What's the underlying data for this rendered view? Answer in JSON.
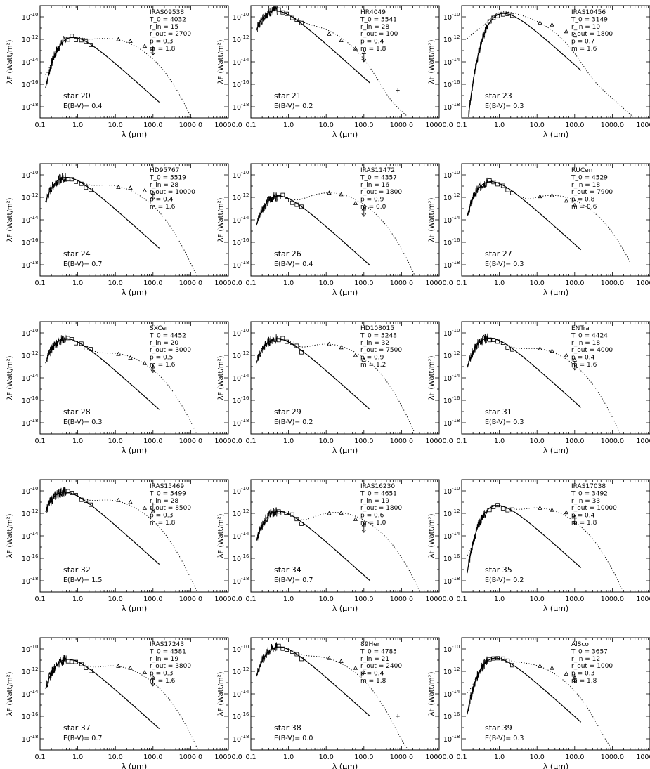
{
  "chart_data": [
    {
      "type": "line",
      "star_label": "star 20",
      "ebv_label": "E(B-V)= 0.4",
      "params": [
        "IRAS09538",
        "T_0 = 4032",
        "r_in = 15",
        "r_out = 2700",
        "p = 0.3",
        "m = 1.8"
      ],
      "peak": 1.5e-12,
      "peak_wl": 0.75,
      "dust_peak": 1.2e-12,
      "dust_wl": 6.0,
      "stop_wl": 3000,
      "irx": [
        12,
        25,
        60,
        100
      ],
      "irf": [
        1e-12,
        7e-13,
        2.5e-13,
        1.5e-13
      ],
      "upper_wl": 100,
      "upper_flux": 4e-14
    },
    {
      "type": "line",
      "star_label": "star 21",
      "ebv_label": "E(B-V)= 0.2",
      "params": [
        "HR4049",
        "T_0 = 5541",
        "r_in = 28",
        "r_out = 100",
        "p = 0.4",
        "m = 1.8"
      ],
      "peak": 3.5e-10,
      "peak_wl": 0.45,
      "dust_peak": 1.5e-11,
      "dust_wl": 3.0,
      "stop_wl": 3000,
      "irx": [
        12,
        25,
        60,
        100
      ],
      "irf": [
        3e-12,
        8e-13,
        1.5e-13,
        7e-14
      ],
      "upper_wl": 100,
      "upper_flux": 1e-14,
      "extra_wl": 800,
      "extra_flux": 3e-17
    },
    {
      "type": "line",
      "star_label": "star 23",
      "ebv_label": "E(B-V)= 0.3",
      "params": [
        "IRAS10456",
        "T_0 = 3149",
        "r_in = 10",
        "r_out = 1800",
        "p = 0.7",
        "m = 1.6"
      ],
      "peak": 2e-10,
      "peak_wl": 1.3,
      "dust_peak": 1e-10,
      "dust_wl": 2.5,
      "stop_wl": 5000,
      "irx": [
        12,
        25,
        60,
        100
      ],
      "irf": [
        3e-11,
        2e-11,
        5e-12,
        2.5e-12
      ]
    },
    {
      "type": "line",
      "star_label": "star 24",
      "ebv_label": "E(B-V)= 0.7",
      "params": [
        "HD95767",
        "T_0 = 5519",
        "r_in = 28",
        "r_out = 10000",
        "p = 0.4",
        "m = 1.6"
      ],
      "peak": 6e-11,
      "peak_wl": 0.5,
      "dust_peak": 1.2e-11,
      "dust_wl": 6.0,
      "stop_wl": 7000,
      "irx": [
        12,
        25,
        60,
        100
      ],
      "irf": [
        8e-12,
        7e-12,
        4e-12,
        2.5e-12
      ],
      "upper_wl": 100,
      "upper_flux": 6e-13
    },
    {
      "type": "line",
      "star_label": "star 26",
      "ebv_label": "E(B-V)= 0.4",
      "params": [
        "IRAS11472",
        "T_0 = 4357",
        "r_in = 16",
        "r_out = 1800",
        "p = 0.9",
        "m = 0.0"
      ],
      "peak": 1.3e-12,
      "peak_wl": 0.55,
      "dust_peak": 2.5e-12,
      "dust_wl": 12.0,
      "stop_wl": 2500,
      "irx": [
        12,
        25,
        60,
        100
      ],
      "irf": [
        2.5e-12,
        1.8e-12,
        3e-13,
        1e-13
      ],
      "upper_wl": 100,
      "upper_flux": 2e-14
    },
    {
      "type": "line",
      "star_label": "star 27",
      "ebv_label": "E(B-V)= 0.3",
      "params": [
        "RUCen",
        "T_0 = 4529",
        "r_in = 18",
        "r_out = 7900",
        "p = 0.8",
        "m = 0.6"
      ],
      "peak": 2.5e-11,
      "peak_wl": 0.6,
      "dust_peak": 1.5e-12,
      "dust_wl": 25.0,
      "stop_wl": 3000,
      "irx": [
        12,
        25,
        60,
        100
      ],
      "irf": [
        1.2e-12,
        1.5e-12,
        5e-13,
        2e-13
      ]
    },
    {
      "type": "line",
      "star_label": "star 28",
      "ebv_label": "E(B-V)= 0.3",
      "params": [
        "SXCen",
        "T_0 = 4452",
        "r_in = 20",
        "r_out = 3000",
        "p = 0.5",
        "m = 1.6"
      ],
      "peak": 3e-11,
      "peak_wl": 0.5,
      "dust_peak": 1.5e-12,
      "dust_wl": 8.0,
      "stop_wl": 3000,
      "irx": [
        12,
        25,
        60,
        100
      ],
      "irf": [
        1.3e-12,
        6e-13,
        2e-13,
        1e-13
      ],
      "upper_wl": 100,
      "upper_flux": 3e-14
    },
    {
      "type": "line",
      "star_label": "star 29",
      "ebv_label": "E(B-V)= 0.2",
      "params": [
        "HD108015",
        "T_0 = 5248",
        "r_in = 32",
        "r_out = 7500",
        "p = 0.9",
        "m = 1.2"
      ],
      "peak": 3e-11,
      "peak_wl": 0.5,
      "dust_peak": 1e-11,
      "dust_wl": 10.0,
      "stop_wl": 3000,
      "irx": [
        12,
        25,
        60,
        100
      ],
      "irf": [
        1e-11,
        5e-12,
        1e-12,
        4e-13
      ]
    },
    {
      "type": "line",
      "star_label": "star 31",
      "ebv_label": "E(B-V)= 0.3",
      "params": [
        "ENTra",
        "T_0 = 4424",
        "r_in = 18",
        "r_out = 4000",
        "p = 0.4",
        "m = 1.6"
      ],
      "peak": 3.5e-11,
      "peak_wl": 0.55,
      "dust_peak": 4e-12,
      "dust_wl": 8.0,
      "stop_wl": 5000,
      "irx": [
        12,
        25,
        60,
        100
      ],
      "irf": [
        4e-12,
        2.5e-12,
        1e-12,
        4e-13
      ],
      "upper_wl": 100,
      "upper_flux": 5e-14
    },
    {
      "type": "line",
      "star_label": "star 32",
      "ebv_label": "E(B-V)= 1.5",
      "params": [
        "IRAS15469",
        "T_0 = 5499",
        "r_in = 28",
        "r_out = 8500",
        "p = 0.3",
        "m = 1.8"
      ],
      "peak": 8e-11,
      "peak_wl": 0.45,
      "dust_peak": 1.5e-11,
      "dust_wl": 6.0,
      "stop_wl": 6000,
      "irx": [
        12,
        25,
        60,
        100
      ],
      "irf": [
        1.5e-11,
        1e-11,
        3e-12,
        1.5e-12
      ],
      "upper_wl": 100,
      "upper_flux": 1.5e-12
    },
    {
      "type": "line",
      "star_label": "star 34",
      "ebv_label": "E(B-V)= 0.7",
      "params": [
        "IRAS16230",
        "T_0 = 4651",
        "r_in = 19",
        "r_out = 1800",
        "p = 0.6",
        "m = 1.0"
      ],
      "peak": 1.5e-12,
      "peak_wl": 0.55,
      "dust_peak": 1.2e-12,
      "dust_wl": 18.0,
      "stop_wl": 3000,
      "irx": [
        12,
        25,
        60,
        100
      ],
      "irf": [
        1e-12,
        1.1e-12,
        3e-13,
        1e-13
      ],
      "upper_wl": 100,
      "upper_flux": 2e-14
    },
    {
      "type": "line",
      "star_label": "star 35",
      "ebv_label": "E(B-V)= 0.2",
      "params": [
        "IRAS17038",
        "T_0 = 3492",
        "r_in = 33",
        "r_out = 10000",
        "p = 0.4",
        "m = 1.8"
      ],
      "peak": 5e-12,
      "peak_wl": 0.9,
      "dust_peak": 3e-12,
      "dust_wl": 10.0,
      "stop_wl": 7000,
      "irx": [
        12,
        25,
        60,
        100
      ],
      "irf": [
        3e-12,
        2e-12,
        1.2e-12,
        5e-13
      ],
      "upper_wl": 100,
      "upper_flux": 1e-13
    },
    {
      "type": "line",
      "star_label": "star 37",
      "ebv_label": "E(B-V)= 0.7",
      "params": [
        "IRAS17243",
        "T_0 = 4581",
        "r_in = 19",
        "r_out = 3800",
        "p = 0.3",
        "m = 1.6"
      ],
      "peak": 1.2e-11,
      "peak_wl": 0.55,
      "dust_peak": 3e-12,
      "dust_wl": 8.0,
      "stop_wl": 5000,
      "irx": [
        12,
        25,
        60,
        100
      ],
      "irf": [
        3e-12,
        2e-12,
        8e-13,
        3e-13
      ],
      "upper_wl": 100,
      "upper_flux": 5e-14
    },
    {
      "type": "line",
      "star_label": "star 38",
      "ebv_label": "E(B-V)= 0.0",
      "params": [
        "89Her",
        "T_0 = 4785",
        "r_in = 21",
        "r_out = 2400",
        "p = 0.4",
        "m = 1.8"
      ],
      "peak": 1.5e-10,
      "peak_wl": 0.55,
      "dust_peak": 2e-11,
      "dust_wl": 5.0,
      "stop_wl": 3000,
      "irx": [
        12,
        25,
        60,
        100
      ],
      "irf": [
        1.5e-11,
        8e-12,
        2e-12,
        8e-13
      ],
      "extra_wl": 800,
      "extra_flux": 1e-16
    },
    {
      "type": "line",
      "star_label": "star 39",
      "ebv_label": "E(B-V)= 0.3",
      "params": [
        "AlSco",
        "T_0 = 3657",
        "r_in = 12",
        "r_out = 1000",
        "p = 0.3",
        "m = 1.8"
      ],
      "peak": 1.5e-11,
      "peak_wl": 0.8,
      "dust_peak": 5e-12,
      "dust_wl": 4.0,
      "stop_wl": 2500,
      "irx": [
        12,
        25,
        60,
        100
      ],
      "irf": [
        3e-12,
        2e-12,
        6e-13,
        3e-13
      ],
      "upper_wl": 100,
      "upper_flux": 1e-13
    }
  ],
  "axes": {
    "xlabel": "λ (μm)",
    "ylabel": "λF  (Watt/m²)",
    "xlim": [
      0.1,
      10000
    ],
    "ylim": [
      1e-19,
      1e-09
    ],
    "x_log": true,
    "y_log": true,
    "x_ticks": [
      "0.1",
      "1.0",
      "10.0",
      "100.0",
      "1000.0",
      "10000.0"
    ],
    "y_ticks": [
      "10",
      "10",
      "10",
      "10",
      "10"
    ],
    "y_tick_exponents": [
      "-10",
      "-12",
      "-14",
      "-16",
      "-18"
    ],
    "grid": false
  }
}
